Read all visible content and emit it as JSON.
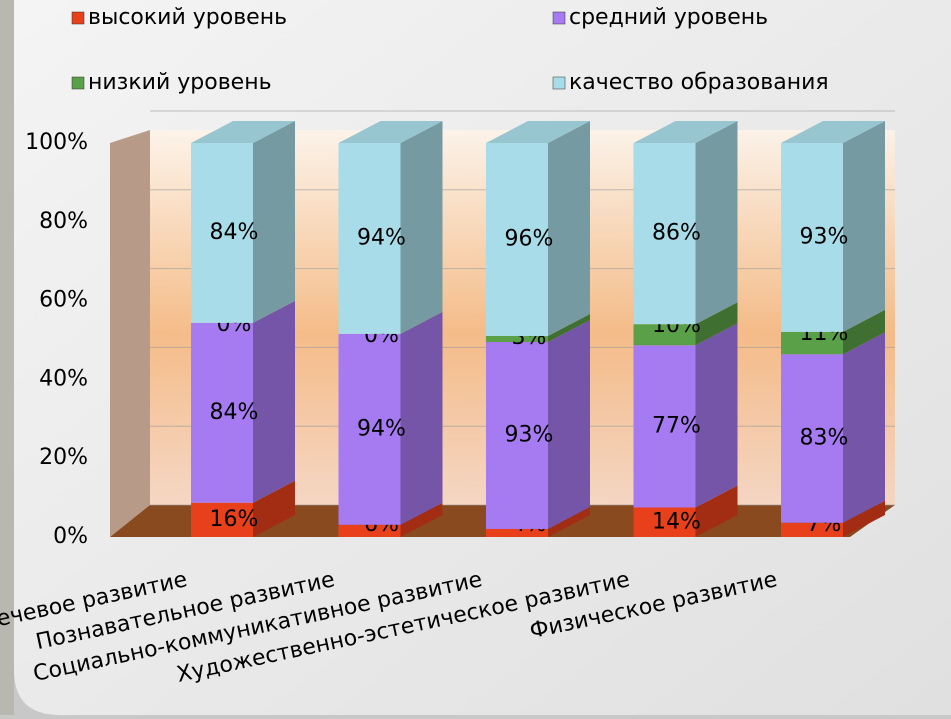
{
  "chart_data": {
    "type": "stacked_percent_3d",
    "categories": [
      "Речевое развитие",
      "Познавательное развитие",
      "Социально-коммуникативное развитие",
      "Художественно-эстетическое развитие",
      "Физическое развитие"
    ],
    "series": [
      {
        "name": "высокий уровень",
        "color": "#e8401a",
        "values": [
          16,
          6,
          4,
          14,
          7
        ],
        "value_labels": [
          "16%",
          "6%",
          "4%",
          "14%",
          "7%"
        ]
      },
      {
        "name": "средний уровень",
        "color": "#a67af0",
        "values": [
          84,
          94,
          93,
          77,
          83
        ],
        "value_labels": [
          "84%",
          "94%",
          "93%",
          "77%",
          "83%"
        ]
      },
      {
        "name": "низкий уровень",
        "color": "#5aa048",
        "values": [
          0,
          0,
          3,
          10,
          11
        ],
        "value_labels": [
          "0%",
          "0%",
          "3%",
          "10%",
          "11%"
        ]
      },
      {
        "name": "качество образования",
        "color": "#a8dce8",
        "values": [
          84,
          94,
          96,
          86,
          93
        ],
        "value_labels": [
          "84%",
          "94%",
          "96%",
          "86%",
          "93%"
        ]
      }
    ],
    "ylim": [
      0,
      100
    ],
    "yticks": [
      {
        "value": 0,
        "label": "0%"
      },
      {
        "value": 20,
        "label": "20%"
      },
      {
        "value": 40,
        "label": "40%"
      },
      {
        "value": 60,
        "label": "60%"
      },
      {
        "value": 80,
        "label": "80%"
      },
      {
        "value": 100,
        "label": "100%"
      }
    ],
    "grid": true
  }
}
